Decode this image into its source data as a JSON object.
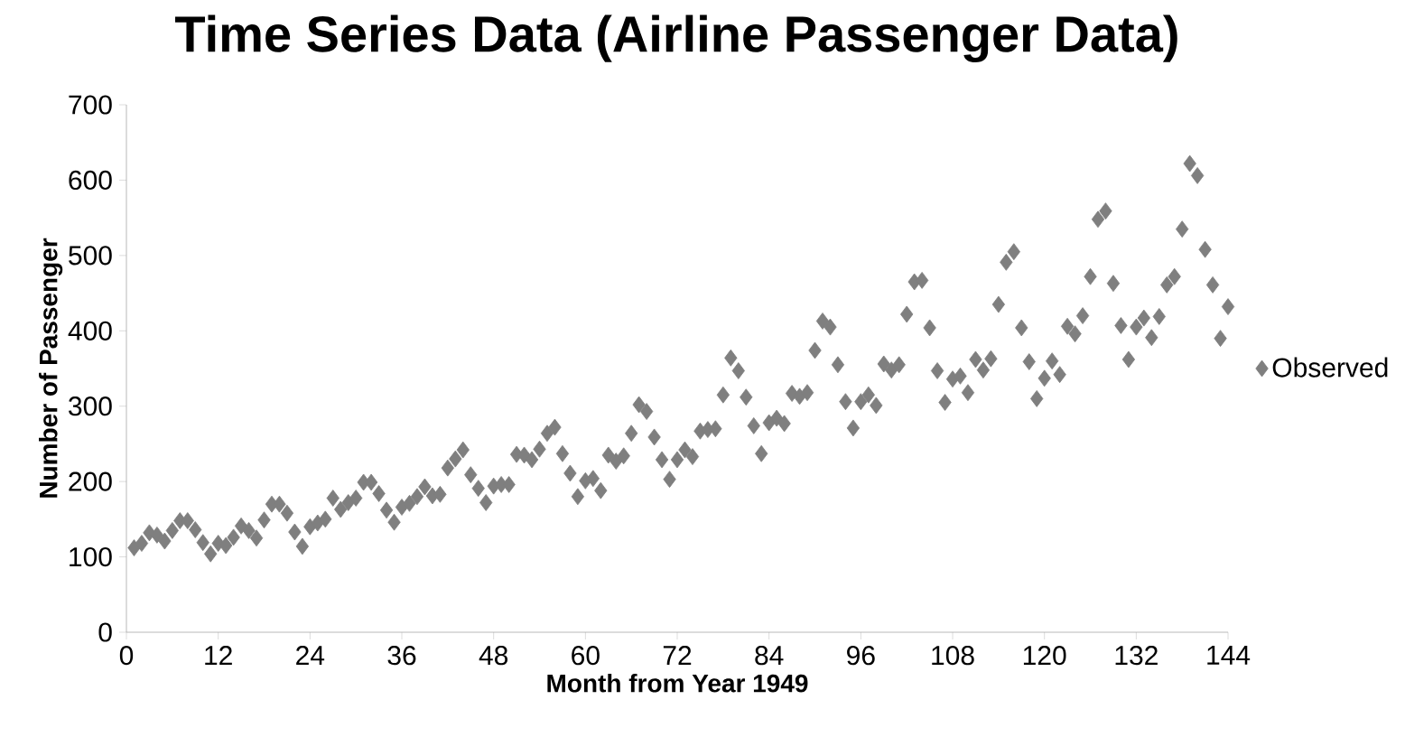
{
  "chart_data": {
    "type": "scatter",
    "title": "Time Series Data (Airline Passenger Data)",
    "xlabel": "Month from Year 1949",
    "ylabel": "Number of Passenger",
    "xlim": [
      0,
      144
    ],
    "ylim": [
      0,
      700
    ],
    "xticks": [
      0,
      12,
      24,
      36,
      48,
      60,
      72,
      84,
      96,
      108,
      120,
      132,
      144
    ],
    "yticks": [
      0,
      100,
      200,
      300,
      400,
      500,
      600,
      700
    ],
    "grid": false,
    "legend": "right",
    "marker": "diamond",
    "series": [
      {
        "name": "Observed",
        "color": "#7f7f7f",
        "x": [
          1,
          2,
          3,
          4,
          5,
          6,
          7,
          8,
          9,
          10,
          11,
          12,
          13,
          14,
          15,
          16,
          17,
          18,
          19,
          20,
          21,
          22,
          23,
          24,
          25,
          26,
          27,
          28,
          29,
          30,
          31,
          32,
          33,
          34,
          35,
          36,
          37,
          38,
          39,
          40,
          41,
          42,
          43,
          44,
          45,
          46,
          47,
          48,
          49,
          50,
          51,
          52,
          53,
          54,
          55,
          56,
          57,
          58,
          59,
          60,
          61,
          62,
          63,
          64,
          65,
          66,
          67,
          68,
          69,
          70,
          71,
          72,
          73,
          74,
          75,
          76,
          77,
          78,
          79,
          80,
          81,
          82,
          83,
          84,
          85,
          86,
          87,
          88,
          89,
          90,
          91,
          92,
          93,
          94,
          95,
          96,
          97,
          98,
          99,
          100,
          101,
          102,
          103,
          104,
          105,
          106,
          107,
          108,
          109,
          110,
          111,
          112,
          113,
          114,
          115,
          116,
          117,
          118,
          119,
          120,
          121,
          122,
          123,
          124,
          125,
          126,
          127,
          128,
          129,
          130,
          131,
          132,
          133,
          134,
          135,
          136,
          137,
          138,
          139,
          140,
          141,
          142,
          143,
          144
        ],
        "values": [
          112,
          118,
          132,
          129,
          121,
          135,
          148,
          148,
          136,
          119,
          104,
          118,
          115,
          126,
          141,
          135,
          125,
          149,
          170,
          170,
          158,
          133,
          114,
          140,
          145,
          150,
          178,
          163,
          172,
          178,
          199,
          199,
          184,
          162,
          146,
          166,
          171,
          180,
          193,
          181,
          183,
          218,
          230,
          242,
          209,
          191,
          172,
          194,
          196,
          196,
          236,
          235,
          229,
          243,
          264,
          272,
          237,
          211,
          180,
          201,
          204,
          188,
          235,
          227,
          234,
          264,
          302,
          293,
          259,
          229,
          203,
          229,
          242,
          233,
          267,
          269,
          270,
          315,
          364,
          347,
          312,
          274,
          237,
          278,
          284,
          277,
          317,
          313,
          318,
          374,
          413,
          405,
          355,
          306,
          271,
          306,
          315,
          301,
          356,
          348,
          355,
          422,
          465,
          467,
          404,
          347,
          305,
          336,
          340,
          318,
          362,
          348,
          363,
          435,
          491,
          505,
          404,
          359,
          310,
          337,
          360,
          342,
          406,
          396,
          420,
          472,
          548,
          559,
          463,
          407,
          362,
          405,
          417,
          391,
          419,
          461,
          472,
          535,
          622,
          606,
          508,
          461,
          390,
          432
        ]
      }
    ]
  }
}
